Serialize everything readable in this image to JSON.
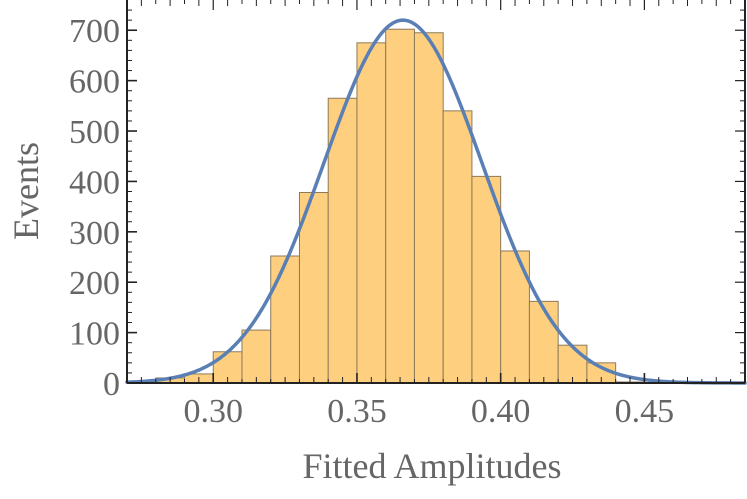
{
  "chart_data": {
    "type": "bar",
    "title": "",
    "xlabel": "Fitted Amplitudes",
    "ylabel": "Events",
    "xlim": [
      0.27,
      0.485
    ],
    "ylim": [
      0,
      760
    ],
    "xticks": [
      0.3,
      0.35,
      0.4,
      0.45
    ],
    "xtick_labels": [
      "0.30",
      "0.35",
      "0.40",
      "0.45"
    ],
    "yticks": [
      0,
      100,
      200,
      300,
      400,
      500,
      600,
      700
    ],
    "ytick_labels": [
      "0",
      "100",
      "200",
      "300",
      "400",
      "500",
      "600",
      "700"
    ],
    "grid": false,
    "bin_width": 0.01,
    "bin_starts": [
      0.28,
      0.29,
      0.3,
      0.31,
      0.32,
      0.33,
      0.34,
      0.35,
      0.36,
      0.37,
      0.38,
      0.39,
      0.4,
      0.41,
      0.42,
      0.43,
      0.44
    ],
    "values": [
      10,
      18,
      62,
      105,
      252,
      378,
      565,
      675,
      702,
      695,
      540,
      410,
      262,
      162,
      75,
      40,
      2
    ],
    "series": [
      {
        "type": "gaussian_fit",
        "amplitude": 720,
        "mean": 0.366,
        "sigma": 0.0275
      }
    ],
    "colors": {
      "bar_fill": "#fecf7f",
      "bar_stroke": "#8c7a5a",
      "curve": "#5a7fb5",
      "axis": "#222222",
      "text": "#666666"
    }
  }
}
